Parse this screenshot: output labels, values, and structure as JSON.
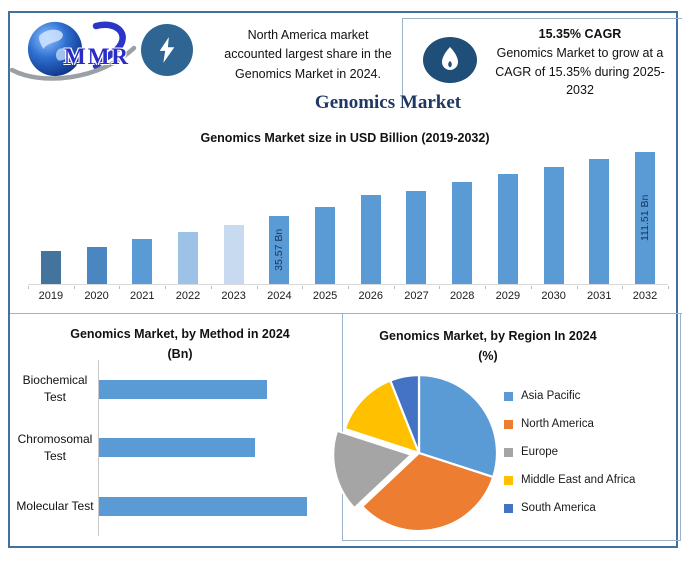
{
  "brand": {
    "logo_text": "MMR"
  },
  "header": {
    "note_lines": [
      "North America market",
      "accounted largest share in the",
      "Genomics Market in 2024."
    ],
    "cagr_title": "15.35% CAGR",
    "cagr_lines": [
      "Genomics Market to grow at a",
      "CAGR of 15.35% during 2025-",
      "2032"
    ]
  },
  "page_title": "Genomics Market",
  "icons": {
    "bolt": "lightning-bolt-icon",
    "flame": "flame-icon",
    "globe": "globe-logo-icon"
  },
  "colors": {
    "frame_border": "#41719C",
    "inner_line": "#9AB3CB",
    "bolt_circle": "#2F6593",
    "flame_circle": "#1F4E79",
    "title_navy": "#1F3864",
    "bar_blue": "#5B9BD5",
    "value_label_navy": "#17375E"
  },
  "chart_data": [
    {
      "type": "bar",
      "title": "Genomics Market size in USD Billion (2019-2032)",
      "ylabel": "USD Billion",
      "categories": [
        "2019",
        "2020",
        "2021",
        "2022",
        "2023",
        "2024",
        "2025",
        "2026",
        "2027",
        "2028",
        "2029",
        "2030",
        "2031",
        "2032"
      ],
      "values": [
        17.5,
        20.2,
        23.3,
        26.8,
        30.9,
        35.57,
        41.0,
        47.3,
        54.6,
        63.0,
        72.6,
        83.8,
        96.7,
        111.51
      ],
      "values_note": "only 2024 (35.57 Bn) and 2032 (111.51 Bn) are labeled on the chart; other years estimated from the 15.35% CAGR trend",
      "data_labels": [
        {
          "index": 5,
          "text": "35.57 Bn"
        },
        {
          "index": 13,
          "text": "111.51 Bn"
        }
      ],
      "bar_colors": [
        "#44749E",
        "#4A86C0",
        "#5B9BD5",
        "#9CC2E5",
        "#C7DAF0",
        "#5B9BD5",
        "#5B9BD5",
        "#5B9BD5",
        "#5B9BD5",
        "#5B9BD5",
        "#5B9BD5",
        "#5B9BD5",
        "#5B9BD5",
        "#5B9BD5"
      ],
      "display_heights_pct": [
        25,
        28,
        34,
        39,
        44,
        51,
        58,
        67,
        70,
        77,
        83,
        88,
        94,
        100
      ],
      "grid": false,
      "legend": false,
      "y_axis_shown": false
    },
    {
      "type": "bar",
      "orientation": "horizontal",
      "title_lines": [
        "Genomics Market, by Method in 2024",
        "(Bn)"
      ],
      "categories": [
        "Biochemical Test",
        "Chromosomal Test",
        "Molecular Test"
      ],
      "display_lengths_pct": [
        81,
        75,
        100
      ],
      "bar_color": "#5B9BD5",
      "grid": false,
      "value_labels_shown": false
    },
    {
      "type": "pie",
      "title_lines": [
        "Genomics Market, by Region In 2024",
        "(%)"
      ],
      "labels": [
        "Asia Pacific",
        "North America",
        "Europe",
        "Middle East and Africa",
        "South America"
      ],
      "values_pct_est": [
        30,
        33,
        17,
        14,
        6
      ],
      "colors": [
        "#5B9BD5",
        "#ED7D31",
        "#A5A5A5",
        "#FFC000",
        "#4472C4"
      ],
      "exploded_slice": "Europe",
      "start_angle_deg": 0,
      "direction": "clockwise",
      "legend_position": "right"
    }
  ]
}
